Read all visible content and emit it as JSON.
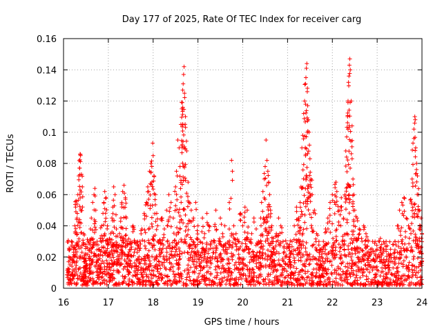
{
  "chart_data": {
    "type": "scatter",
    "title": "Day 177 of 2025, Rate Of TEC Index for receiver carg",
    "xlabel": "GPS time / hours",
    "ylabel": "ROTI / TECUs",
    "xlim": [
      16,
      24
    ],
    "ylim": [
      0,
      0.16
    ],
    "x_ticks": [
      16,
      17,
      18,
      19,
      20,
      21,
      22,
      23,
      24
    ],
    "x_tick_labels": [
      "16",
      "17",
      "18",
      "19",
      "20",
      "21",
      "22",
      "23",
      "24"
    ],
    "y_ticks": [
      0,
      0.02,
      0.04,
      0.06,
      0.08,
      0.1,
      0.12,
      0.14,
      0.16
    ],
    "y_tick_labels": [
      "0",
      "0.02",
      "0.04",
      "0.06",
      "0.08",
      "0.1",
      "0.12",
      "0.14",
      "0.16"
    ],
    "grid": true,
    "marker": "+",
    "marker_color": "#ff0000",
    "series": [
      {
        "name": "ROTI",
        "points": [
          [
            16.1,
            0.012
          ],
          [
            16.12,
            0.02
          ],
          [
            16.15,
            0.006
          ],
          [
            16.18,
            0.03
          ],
          [
            16.2,
            0.018
          ],
          [
            16.22,
            0.025
          ],
          [
            16.25,
            0.04
          ],
          [
            16.27,
            0.052
          ],
          [
            16.28,
            0.056
          ],
          [
            16.3,
            0.045
          ],
          [
            16.32,
            0.06
          ],
          [
            16.34,
            0.072
          ],
          [
            16.36,
            0.077
          ],
          [
            16.37,
            0.086
          ],
          [
            16.38,
            0.085
          ],
          [
            16.4,
            0.073
          ],
          [
            16.42,
            0.065
          ],
          [
            16.45,
            0.035
          ],
          [
            16.48,
            0.022
          ],
          [
            16.5,
            0.028
          ],
          [
            16.52,
            0.015
          ],
          [
            16.55,
            0.03
          ],
          [
            16.58,
            0.018
          ],
          [
            16.6,
            0.038
          ],
          [
            16.62,
            0.045
          ],
          [
            16.65,
            0.055
          ],
          [
            16.68,
            0.06
          ],
          [
            16.7,
            0.064
          ],
          [
            16.72,
            0.05
          ],
          [
            16.75,
            0.03
          ],
          [
            16.78,
            0.018
          ],
          [
            16.8,
            0.025
          ],
          [
            16.82,
            0.032
          ],
          [
            16.85,
            0.04
          ],
          [
            16.88,
            0.048
          ],
          [
            16.9,
            0.055
          ],
          [
            16.92,
            0.062
          ],
          [
            16.95,
            0.058
          ],
          [
            16.98,
            0.04
          ],
          [
            17.0,
            0.03
          ],
          [
            17.02,
            0.022
          ],
          [
            17.05,
            0.035
          ],
          [
            17.08,
            0.045
          ],
          [
            17.1,
            0.052
          ],
          [
            17.12,
            0.065
          ],
          [
            17.15,
            0.06
          ],
          [
            17.18,
            0.038
          ],
          [
            17.2,
            0.028
          ],
          [
            17.22,
            0.018
          ],
          [
            17.25,
            0.035
          ],
          [
            17.28,
            0.045
          ],
          [
            17.3,
            0.055
          ],
          [
            17.32,
            0.062
          ],
          [
            17.35,
            0.066
          ],
          [
            17.38,
            0.058
          ],
          [
            17.4,
            0.045
          ],
          [
            17.42,
            0.03
          ],
          [
            17.45,
            0.022
          ],
          [
            17.48,
            0.018
          ],
          [
            17.5,
            0.03
          ],
          [
            17.55,
            0.04
          ],
          [
            17.6,
            0.025
          ],
          [
            17.65,
            0.018
          ],
          [
            17.7,
            0.03
          ],
          [
            17.75,
            0.038
          ],
          [
            17.8,
            0.048
          ],
          [
            17.85,
            0.055
          ],
          [
            17.88,
            0.065
          ],
          [
            17.9,
            0.062
          ],
          [
            17.92,
            0.075
          ],
          [
            17.95,
            0.08
          ],
          [
            17.97,
            0.078
          ],
          [
            17.99,
            0.093
          ],
          [
            18.0,
            0.085
          ],
          [
            18.02,
            0.072
          ],
          [
            18.05,
            0.06
          ],
          [
            18.08,
            0.048
          ],
          [
            18.1,
            0.04
          ],
          [
            18.15,
            0.03
          ],
          [
            18.2,
            0.045
          ],
          [
            18.25,
            0.038
          ],
          [
            18.3,
            0.05
          ],
          [
            18.35,
            0.06
          ],
          [
            18.4,
            0.055
          ],
          [
            18.45,
            0.045
          ],
          [
            18.5,
            0.065
          ],
          [
            18.52,
            0.075
          ],
          [
            18.55,
            0.095
          ],
          [
            18.58,
            0.09
          ],
          [
            18.6,
            0.078
          ],
          [
            18.62,
            0.105
          ],
          [
            18.64,
            0.115
          ],
          [
            18.65,
            0.119
          ],
          [
            18.66,
            0.127
          ],
          [
            18.67,
            0.131
          ],
          [
            18.68,
            0.137
          ],
          [
            18.69,
            0.142
          ],
          [
            18.7,
            0.125
          ],
          [
            18.72,
            0.11
          ],
          [
            18.75,
            0.088
          ],
          [
            18.78,
            0.068
          ],
          [
            18.8,
            0.055
          ],
          [
            18.85,
            0.05
          ],
          [
            18.9,
            0.045
          ],
          [
            18.95,
            0.055
          ],
          [
            19.0,
            0.04
          ],
          [
            19.05,
            0.03
          ],
          [
            19.1,
            0.045
          ],
          [
            19.15,
            0.035
          ],
          [
            19.2,
            0.048
          ],
          [
            19.25,
            0.04
          ],
          [
            19.3,
            0.03
          ],
          [
            19.4,
            0.05
          ],
          [
            19.5,
            0.045
          ],
          [
            19.55,
            0.035
          ],
          [
            19.6,
            0.04
          ],
          [
            19.7,
            0.055
          ],
          [
            19.75,
            0.082
          ],
          [
            19.8,
            0.04
          ],
          [
            19.85,
            0.035
          ],
          [
            19.9,
            0.03
          ],
          [
            19.95,
            0.048
          ],
          [
            20.0,
            0.04
          ],
          [
            20.05,
            0.052
          ],
          [
            20.1,
            0.05
          ],
          [
            20.15,
            0.03
          ],
          [
            20.2,
            0.035
          ],
          [
            20.25,
            0.045
          ],
          [
            20.3,
            0.038
          ],
          [
            20.35,
            0.03
          ],
          [
            20.4,
            0.045
          ],
          [
            20.42,
            0.055
          ],
          [
            20.45,
            0.062
          ],
          [
            20.48,
            0.07
          ],
          [
            20.5,
            0.078
          ],
          [
            20.52,
            0.095
          ],
          [
            20.54,
            0.082
          ],
          [
            20.56,
            0.075
          ],
          [
            20.58,
            0.068
          ],
          [
            20.6,
            0.06
          ],
          [
            20.62,
            0.05
          ],
          [
            20.65,
            0.04
          ],
          [
            20.68,
            0.032
          ],
          [
            20.7,
            0.025
          ],
          [
            20.75,
            0.035
          ],
          [
            20.8,
            0.045
          ],
          [
            20.85,
            0.04
          ],
          [
            20.9,
            0.03
          ],
          [
            20.95,
            0.02
          ],
          [
            21.0,
            0.015
          ],
          [
            21.05,
            0.028
          ],
          [
            21.1,
            0.03
          ],
          [
            21.15,
            0.04
          ],
          [
            21.2,
            0.052
          ],
          [
            21.25,
            0.045
          ],
          [
            21.28,
            0.055
          ],
          [
            21.3,
            0.065
          ],
          [
            21.32,
            0.09
          ],
          [
            21.34,
            0.098
          ],
          [
            21.36,
            0.112
          ],
          [
            21.38,
            0.12
          ],
          [
            21.4,
            0.131
          ],
          [
            21.41,
            0.135
          ],
          [
            21.42,
            0.141
          ],
          [
            21.43,
            0.144
          ],
          [
            21.44,
            0.126
          ],
          [
            21.45,
            0.117
          ],
          [
            21.46,
            0.108
          ],
          [
            21.48,
            0.1
          ],
          [
            21.5,
            0.083
          ],
          [
            21.52,
            0.07
          ],
          [
            21.55,
            0.06
          ],
          [
            21.6,
            0.05
          ],
          [
            21.65,
            0.035
          ],
          [
            21.7,
            0.03
          ],
          [
            21.75,
            0.025
          ],
          [
            21.8,
            0.03
          ],
          [
            21.85,
            0.038
          ],
          [
            21.9,
            0.045
          ],
          [
            21.95,
            0.055
          ],
          [
            22.0,
            0.06
          ],
          [
            22.05,
            0.055
          ],
          [
            22.08,
            0.068
          ],
          [
            22.1,
            0.062
          ],
          [
            22.15,
            0.05
          ],
          [
            22.2,
            0.058
          ],
          [
            22.25,
            0.045
          ],
          [
            22.28,
            0.06
          ],
          [
            22.3,
            0.088
          ],
          [
            22.32,
            0.097
          ],
          [
            22.34,
            0.11
          ],
          [
            22.35,
            0.12
          ],
          [
            22.36,
            0.132
          ],
          [
            22.37,
            0.136
          ],
          [
            22.38,
            0.143
          ],
          [
            22.39,
            0.147
          ],
          [
            22.4,
            0.14
          ],
          [
            22.42,
            0.12
          ],
          [
            22.44,
            0.083
          ],
          [
            22.46,
            0.07
          ],
          [
            22.48,
            0.06
          ],
          [
            22.5,
            0.05
          ],
          [
            22.55,
            0.045
          ],
          [
            22.6,
            0.038
          ],
          [
            22.65,
            0.032
          ],
          [
            22.7,
            0.04
          ],
          [
            22.75,
            0.035
          ],
          [
            22.8,
            0.03
          ],
          [
            22.85,
            0.025
          ],
          [
            22.9,
            0.03
          ],
          [
            22.95,
            0.022
          ],
          [
            23.0,
            0.025
          ],
          [
            23.05,
            0.03
          ],
          [
            23.1,
            0.028
          ],
          [
            23.15,
            0.025
          ],
          [
            23.2,
            0.03
          ],
          [
            23.25,
            0.022
          ],
          [
            23.3,
            0.025
          ],
          [
            23.35,
            0.028
          ],
          [
            23.4,
            0.03
          ],
          [
            23.45,
            0.04
          ],
          [
            23.5,
            0.05
          ],
          [
            23.55,
            0.055
          ],
          [
            23.6,
            0.058
          ],
          [
            23.65,
            0.045
          ],
          [
            23.7,
            0.04
          ],
          [
            23.75,
            0.057
          ],
          [
            23.78,
            0.07
          ],
          [
            23.8,
            0.093
          ],
          [
            23.82,
            0.102
          ],
          [
            23.84,
            0.11
          ],
          [
            23.85,
            0.108
          ],
          [
            23.86,
            0.09
          ],
          [
            23.88,
            0.08
          ],
          [
            23.9,
            0.072
          ],
          [
            23.92,
            0.06
          ],
          [
            23.95,
            0.05
          ],
          [
            23.98,
            0.045
          ],
          [
            24.0,
            0.035
          ]
        ]
      }
    ]
  }
}
